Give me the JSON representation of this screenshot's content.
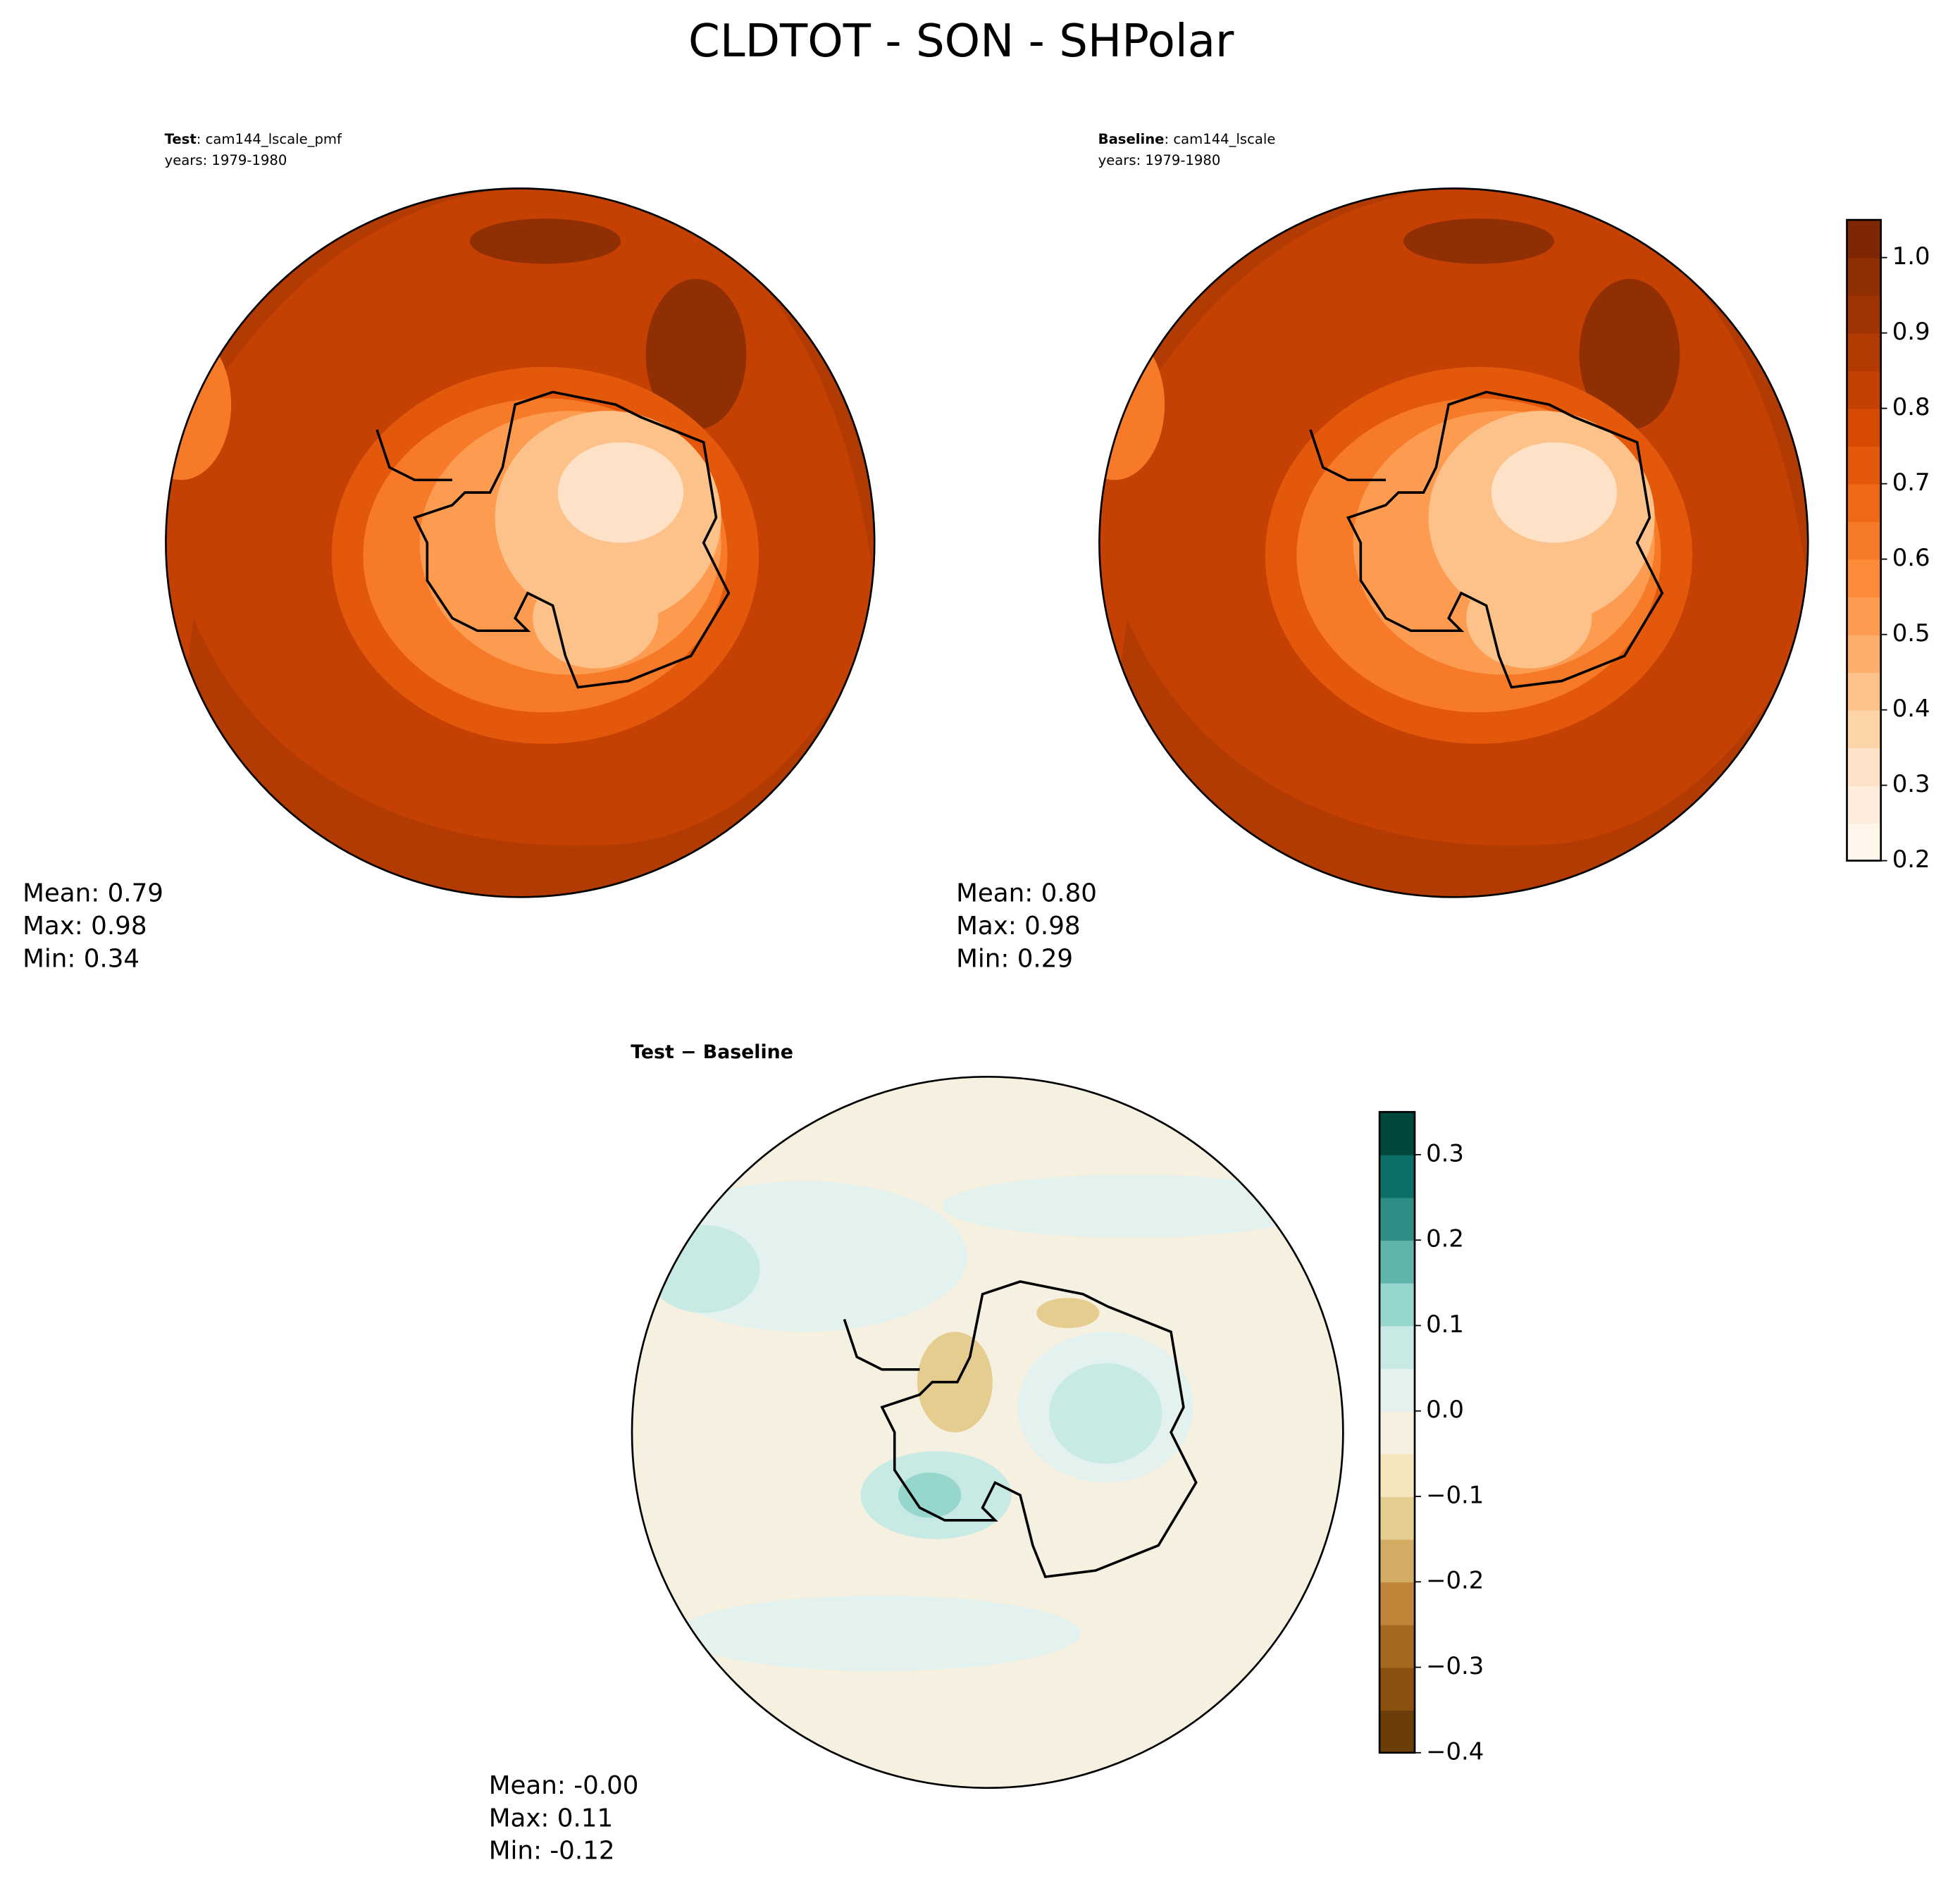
{
  "title": "CLDTOT - SON - SHPolar",
  "panels": [
    {
      "label": "Test",
      "name": ": cam144_lscale_pmf",
      "years": "years: 1979-1980",
      "stats": [
        "Mean:  0.79",
        "Max:  0.98",
        "Min:  0.34"
      ]
    },
    {
      "label": "Baseline",
      "name": ": cam144_lscale",
      "years": "years: 1979-1980",
      "stats": [
        "Mean:  0.80",
        "Max:  0.98",
        "Min:  0.29"
      ]
    },
    {
      "label": "Test − Baseline",
      "stats": [
        "Mean: -0.00",
        "Max:  0.11",
        "Min: -0.12"
      ]
    }
  ],
  "colorbars": [
    {
      "lim": [
        0.2,
        1.05
      ],
      "ticks": [
        0.2,
        0.3,
        0.4,
        0.5,
        0.6,
        0.7,
        0.8,
        0.9,
        {
          "value": 1,
          "label": "1.0"
        }
      ],
      "colors": [
        "#fff5eb",
        "#feeddc",
        "#fee2c7",
        "#fdd3a8",
        "#fdc28a",
        "#fdae6b",
        "#fd9b50",
        "#fd8b3a",
        "#f67a27",
        "#ef6815",
        "#e3580b",
        "#d64a02",
        "#c44103",
        "#b23a03",
        "#a13403",
        "#902e04",
        "#7f2704"
      ]
    },
    {
      "lim": [
        -0.4,
        0.35
      ],
      "ticks": [
        {
          "value": -0.4,
          "label": "−0.4"
        },
        {
          "value": -0.3,
          "label": "−0.3"
        },
        {
          "value": -0.2,
          "label": "−0.2"
        },
        {
          "value": -0.1,
          "label": "−0.1"
        },
        {
          "value": 0,
          "label": "0.0"
        },
        0.1,
        0.2,
        0.3
      ],
      "colors": [
        "#6b3d08",
        "#8a5010",
        "#a6681f",
        "#c08538",
        "#d3ac64",
        "#e5cc8f",
        "#f4e5bd",
        "#f5f0e0",
        "#e4f2ef",
        "#c7eae5",
        "#97d6cc",
        "#5fb5aa",
        "#2e8e86",
        "#0c6f67",
        "#01473d"
      ]
    }
  ]
}
